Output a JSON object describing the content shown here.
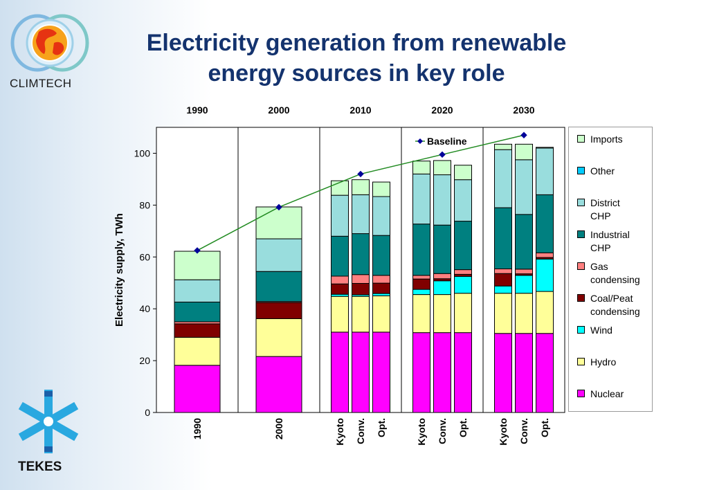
{
  "slide": {
    "title_line1": "Electricity generation from renewable",
    "title_line2": "energy sources in key role",
    "logo_top": "CLIMTECH",
    "logo_bottom": "TEKES"
  },
  "chart_data": {
    "type": "bar",
    "stacked": true,
    "ylabel": "Electricity supply, TWh",
    "ylim": [
      0,
      110
    ],
    "yticks": [
      0,
      20,
      40,
      60,
      80,
      100
    ],
    "groups": [
      "1990",
      "2000",
      "2010",
      "2020",
      "2030"
    ],
    "categories": [
      {
        "group": "1990",
        "label": "1990"
      },
      {
        "group": "2000",
        "label": "2000"
      },
      {
        "group": "2010",
        "label": "Kyoto"
      },
      {
        "group": "2010",
        "label": "Conv."
      },
      {
        "group": "2010",
        "label": "Opt."
      },
      {
        "group": "2020",
        "label": "Kyoto"
      },
      {
        "group": "2020",
        "label": "Conv."
      },
      {
        "group": "2020",
        "label": "Opt."
      },
      {
        "group": "2030",
        "label": "Kyoto"
      },
      {
        "group": "2030",
        "label": "Conv."
      },
      {
        "group": "2030",
        "label": "Opt."
      }
    ],
    "series": [
      {
        "name": "Nuclear",
        "color": "#ff00ff",
        "values": [
          18.2,
          21.6,
          31.0,
          31.0,
          31.0,
          30.8,
          30.8,
          30.8,
          30.5,
          30.5,
          30.5
        ]
      },
      {
        "name": "Hydro",
        "color": "#ffff99",
        "values": [
          10.8,
          14.6,
          13.8,
          13.8,
          14.0,
          14.7,
          14.7,
          15.2,
          15.5,
          15.5,
          16.2
        ]
      },
      {
        "name": "Wind",
        "color": "#00ffff",
        "values": [
          0,
          0,
          0.8,
          0.6,
          0.9,
          2.0,
          5.3,
          6.5,
          2.8,
          6.9,
          12.5
        ]
      },
      {
        "name": "Coal/Peat condensing",
        "color": "#800000",
        "values": [
          5.2,
          6.2,
          4.0,
          4.4,
          4.0,
          4.0,
          0.8,
          0.8,
          4.8,
          0.6,
          0.6
        ]
      },
      {
        "name": "Gas condensing",
        "color": "#ff8080",
        "values": [
          0.8,
          0.4,
          3.0,
          3.4,
          3.0,
          1.4,
          2.0,
          1.8,
          1.8,
          1.8,
          1.8
        ]
      },
      {
        "name": "Industrial CHP",
        "color": "#008080",
        "values": [
          7.6,
          11.6,
          15.4,
          15.8,
          15.4,
          19.8,
          18.7,
          18.7,
          23.6,
          21.1,
          22.4
        ]
      },
      {
        "name": "District CHP",
        "color": "#99dddd",
        "values": [
          8.6,
          12.6,
          15.8,
          15.0,
          15.0,
          19.3,
          19.4,
          16.0,
          22.4,
          21.1,
          18.0
        ]
      },
      {
        "name": "Other",
        "color": "#00ccff",
        "values": [
          0,
          0,
          0,
          0,
          0,
          0,
          0,
          0,
          0,
          0,
          0
        ]
      },
      {
        "name": "Imports",
        "color": "#ccffcc",
        "values": [
          11.0,
          12.3,
          5.6,
          5.8,
          5.6,
          5.0,
          5.5,
          5.6,
          2.1,
          6.0,
          0.3
        ]
      }
    ],
    "baseline": {
      "name": "Baseline",
      "color": "#228b22",
      "marker_color": "#000099",
      "points": [
        62.5,
        79.2,
        92.0,
        99.5,
        107.0
      ]
    }
  },
  "legend": {
    "items": [
      {
        "label": "Imports",
        "color": "#ccffcc"
      },
      {
        "label": "Other",
        "color": "#00ccff"
      },
      {
        "label": "District\nCHP",
        "color": "#99dddd"
      },
      {
        "label": "Industrial\nCHP",
        "color": "#008080"
      },
      {
        "label": "Gas\ncondensing",
        "color": "#ff8080"
      },
      {
        "label": "Coal/Peat\ncondensing",
        "color": "#800000"
      },
      {
        "label": "Wind",
        "color": "#00ffff"
      },
      {
        "label": "Hydro",
        "color": "#ffff99"
      },
      {
        "label": "Nuclear",
        "color": "#ff00ff"
      }
    ]
  }
}
